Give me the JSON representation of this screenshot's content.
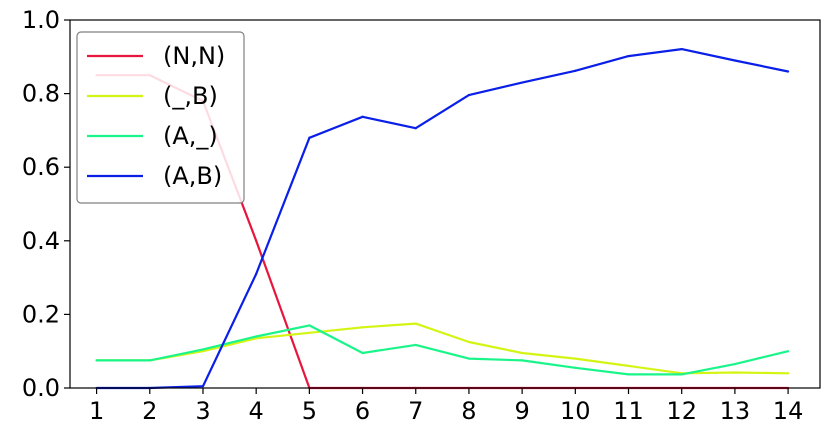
{
  "chart_data": {
    "type": "line",
    "title": "",
    "xlabel": "",
    "ylabel": "",
    "x": [
      1,
      2,
      3,
      4,
      5,
      6,
      7,
      8,
      9,
      10,
      11,
      12,
      13,
      14
    ],
    "xlim": [
      0.5,
      14.6
    ],
    "ylim": [
      0,
      1.0
    ],
    "xticks": [
      "1",
      "2",
      "3",
      "4",
      "5",
      "6",
      "7",
      "8",
      "9",
      "10",
      "11",
      "12",
      "13",
      "14"
    ],
    "yticks": [
      "0.0",
      "0.2",
      "0.4",
      "0.6",
      "0.8",
      "1.0"
    ],
    "grid": false,
    "legend_position": "top-left",
    "series": [
      {
        "name": "(N,N)",
        "color": "#e8163c",
        "values": [
          0.85,
          0.85,
          0.78,
          0.4,
          0.0,
          0.0,
          0.0,
          0.0,
          0.0,
          0.0,
          0.0,
          0.0,
          0.0,
          0.0
        ]
      },
      {
        "name": "(_,B)",
        "color": "#d4f513",
        "values": [
          0.075,
          0.075,
          0.1,
          0.135,
          0.15,
          0.165,
          0.175,
          0.125,
          0.095,
          0.08,
          0.06,
          0.04,
          0.042,
          0.04
        ]
      },
      {
        "name": "(A,_)",
        "color": "#1af58a",
        "values": [
          0.075,
          0.075,
          0.105,
          0.14,
          0.17,
          0.095,
          0.117,
          0.08,
          0.075,
          0.055,
          0.037,
          0.037,
          0.065,
          0.1
        ]
      },
      {
        "name": "(A,B)",
        "color": "#0a1fe8",
        "values": [
          0.0,
          0.0,
          0.005,
          0.31,
          0.68,
          0.737,
          0.706,
          0.796,
          0.83,
          0.862,
          0.902,
          0.921,
          0.89,
          0.86
        ]
      }
    ]
  }
}
